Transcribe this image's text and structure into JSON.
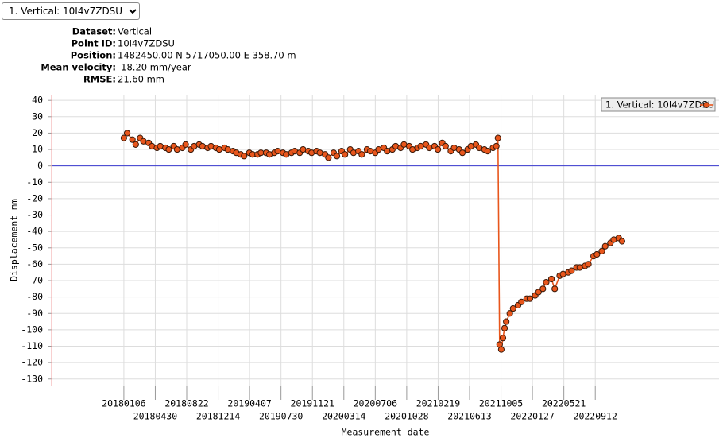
{
  "selector": "1. Vertical: 10I4v7ZDSU",
  "info": [
    {
      "label": "Dataset:",
      "value": "Vertical"
    },
    {
      "label": "Point ID:",
      "value": "10I4v7ZDSU"
    },
    {
      "label": "Position:",
      "value": "1482450.00 N 5717050.00 E 358.70 m"
    },
    {
      "label": "Mean velocity:",
      "value": "-18.20 mm/year"
    },
    {
      "label": "RMSE:",
      "value": "21.60 mm"
    }
  ],
  "chart_data": {
    "type": "line",
    "x_label": "Measurement date",
    "y_label": "Displacement mm",
    "legend": "top-right",
    "grid": true,
    "reference_line": {
      "value": 0,
      "color": "#3a3ad0"
    },
    "xlim": [
      "20170419",
      "20231205"
    ],
    "xticks": [
      "20180106",
      "20180430",
      "20180822",
      "20181214",
      "20190407",
      "20190730",
      "20191121",
      "20200314",
      "20200706",
      "20201028",
      "20210219",
      "20210613",
      "20211005",
      "20220127",
      "20220521",
      "20220912"
    ],
    "ylim": [
      -134,
      43
    ],
    "yticks": [
      -130,
      -120,
      -110,
      -100,
      -90,
      -80,
      -70,
      -60,
      -50,
      -40,
      -30,
      -20,
      -10,
      0,
      10,
      20,
      30,
      40
    ],
    "x": [
      "20180106",
      "20180118",
      "20180206",
      "20180218",
      "20180306",
      "20180318",
      "20180406",
      "20180418",
      "20180506",
      "20180518",
      "20180606",
      "20180618",
      "20180706",
      "20180718",
      "20180806",
      "20180818",
      "20180906",
      "20180918",
      "20181006",
      "20181018",
      "20181106",
      "20181118",
      "20181206",
      "20181218",
      "20190106",
      "20190118",
      "20190206",
      "20190218",
      "20190306",
      "20190318",
      "20190406",
      "20190418",
      "20190506",
      "20190518",
      "20190606",
      "20190618",
      "20190706",
      "20190718",
      "20190806",
      "20190818",
      "20190906",
      "20190918",
      "20191006",
      "20191018",
      "20191106",
      "20191118",
      "20191206",
      "20191218",
      "20200106",
      "20200118",
      "20200206",
      "20200218",
      "20200306",
      "20200318",
      "20200406",
      "20200418",
      "20200506",
      "20200518",
      "20200606",
      "20200618",
      "20200706",
      "20200718",
      "20200806",
      "20200818",
      "20200906",
      "20200918",
      "20201006",
      "20201018",
      "20201106",
      "20201118",
      "20201206",
      "20201218",
      "20210106",
      "20210118",
      "20210206",
      "20210218",
      "20210306",
      "20210318",
      "20210406",
      "20210418",
      "20210506",
      "20210518",
      "20210606",
      "20210618",
      "20210706",
      "20210718",
      "20210806",
      "20210818",
      "20210906",
      "20210918",
      "20210924",
      "20210930",
      "20211006",
      "20211012",
      "20211018",
      "20211024",
      "20211106",
      "20211118",
      "20211206",
      "20211218",
      "20220106",
      "20220118",
      "20220206",
      "20220218",
      "20220306",
      "20220318",
      "20220406",
      "20220418",
      "20220506",
      "20220518",
      "20220606",
      "20220618",
      "20220706",
      "20220718",
      "20220806",
      "20220818",
      "20220906",
      "20220918",
      "20221006",
      "20221018",
      "20221106",
      "20221118",
      "20221206",
      "20221218"
    ],
    "series": [
      {
        "name": "1. Vertical: 10I4v7ZDSU",
        "color": "#e8561c",
        "marker_edge": "#3a1a0a",
        "values": [
          17,
          20,
          16,
          13,
          17,
          15,
          14,
          12,
          11,
          12,
          11,
          10,
          12,
          10,
          11,
          13,
          10,
          12,
          13,
          12,
          11,
          12,
          11,
          10,
          11,
          10,
          9,
          8,
          7,
          6,
          8,
          7,
          7,
          8,
          8,
          7,
          8,
          9,
          8,
          7,
          8,
          9,
          8,
          10,
          9,
          8,
          9,
          8,
          7,
          5,
          8,
          6,
          9,
          7,
          10,
          8,
          9,
          7,
          10,
          9,
          8,
          10,
          11,
          9,
          10,
          12,
          11,
          13,
          12,
          10,
          11,
          12,
          13,
          11,
          12,
          10,
          14,
          12,
          9,
          11,
          10,
          8,
          10,
          12,
          13,
          11,
          10,
          9,
          11,
          12,
          17,
          -109,
          -112,
          -105,
          -99,
          -95,
          -90,
          -87,
          -85,
          -83,
          -81,
          -81,
          -79,
          -77,
          -75,
          -71,
          -69,
          -75,
          -67,
          -66,
          -65,
          -64,
          -62,
          -62,
          -61,
          -60,
          -55,
          -54,
          -52,
          -49,
          -47,
          -45,
          -44,
          -46
        ]
      }
    ]
  }
}
